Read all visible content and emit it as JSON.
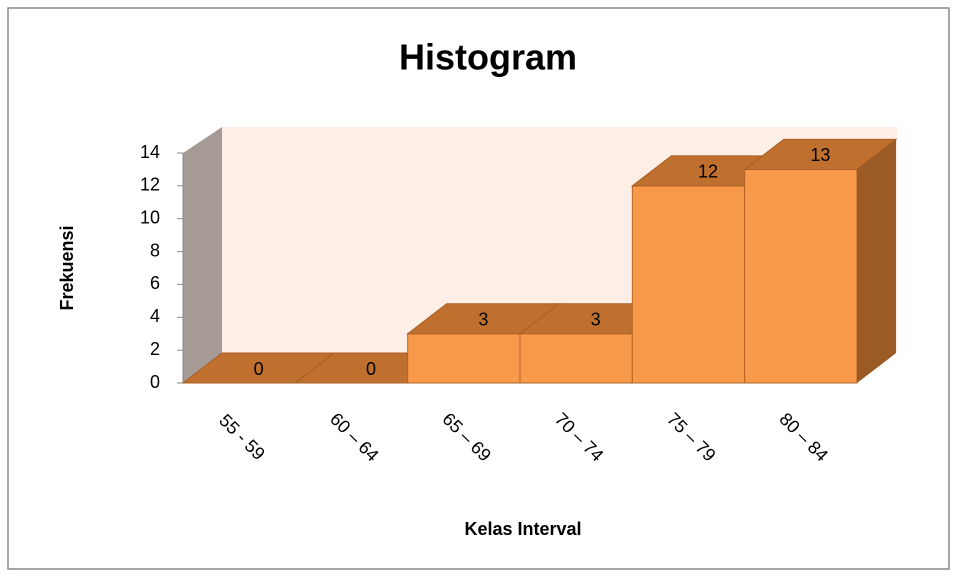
{
  "chart_data": {
    "type": "bar",
    "title": "Histogram",
    "x_label": "Kelas Interval",
    "y_label": "Frekuensi",
    "categories": [
      "55 - 59",
      "60 – 64",
      "65 – 69",
      "70 – 74",
      "75 – 79",
      "80 – 84"
    ],
    "values": [
      0,
      0,
      3,
      3,
      12,
      13
    ],
    "color": "#f9994a",
    "ylim": [
      0,
      14
    ],
    "yticks": [
      0,
      2,
      4,
      6,
      8,
      10,
      12,
      14
    ]
  }
}
